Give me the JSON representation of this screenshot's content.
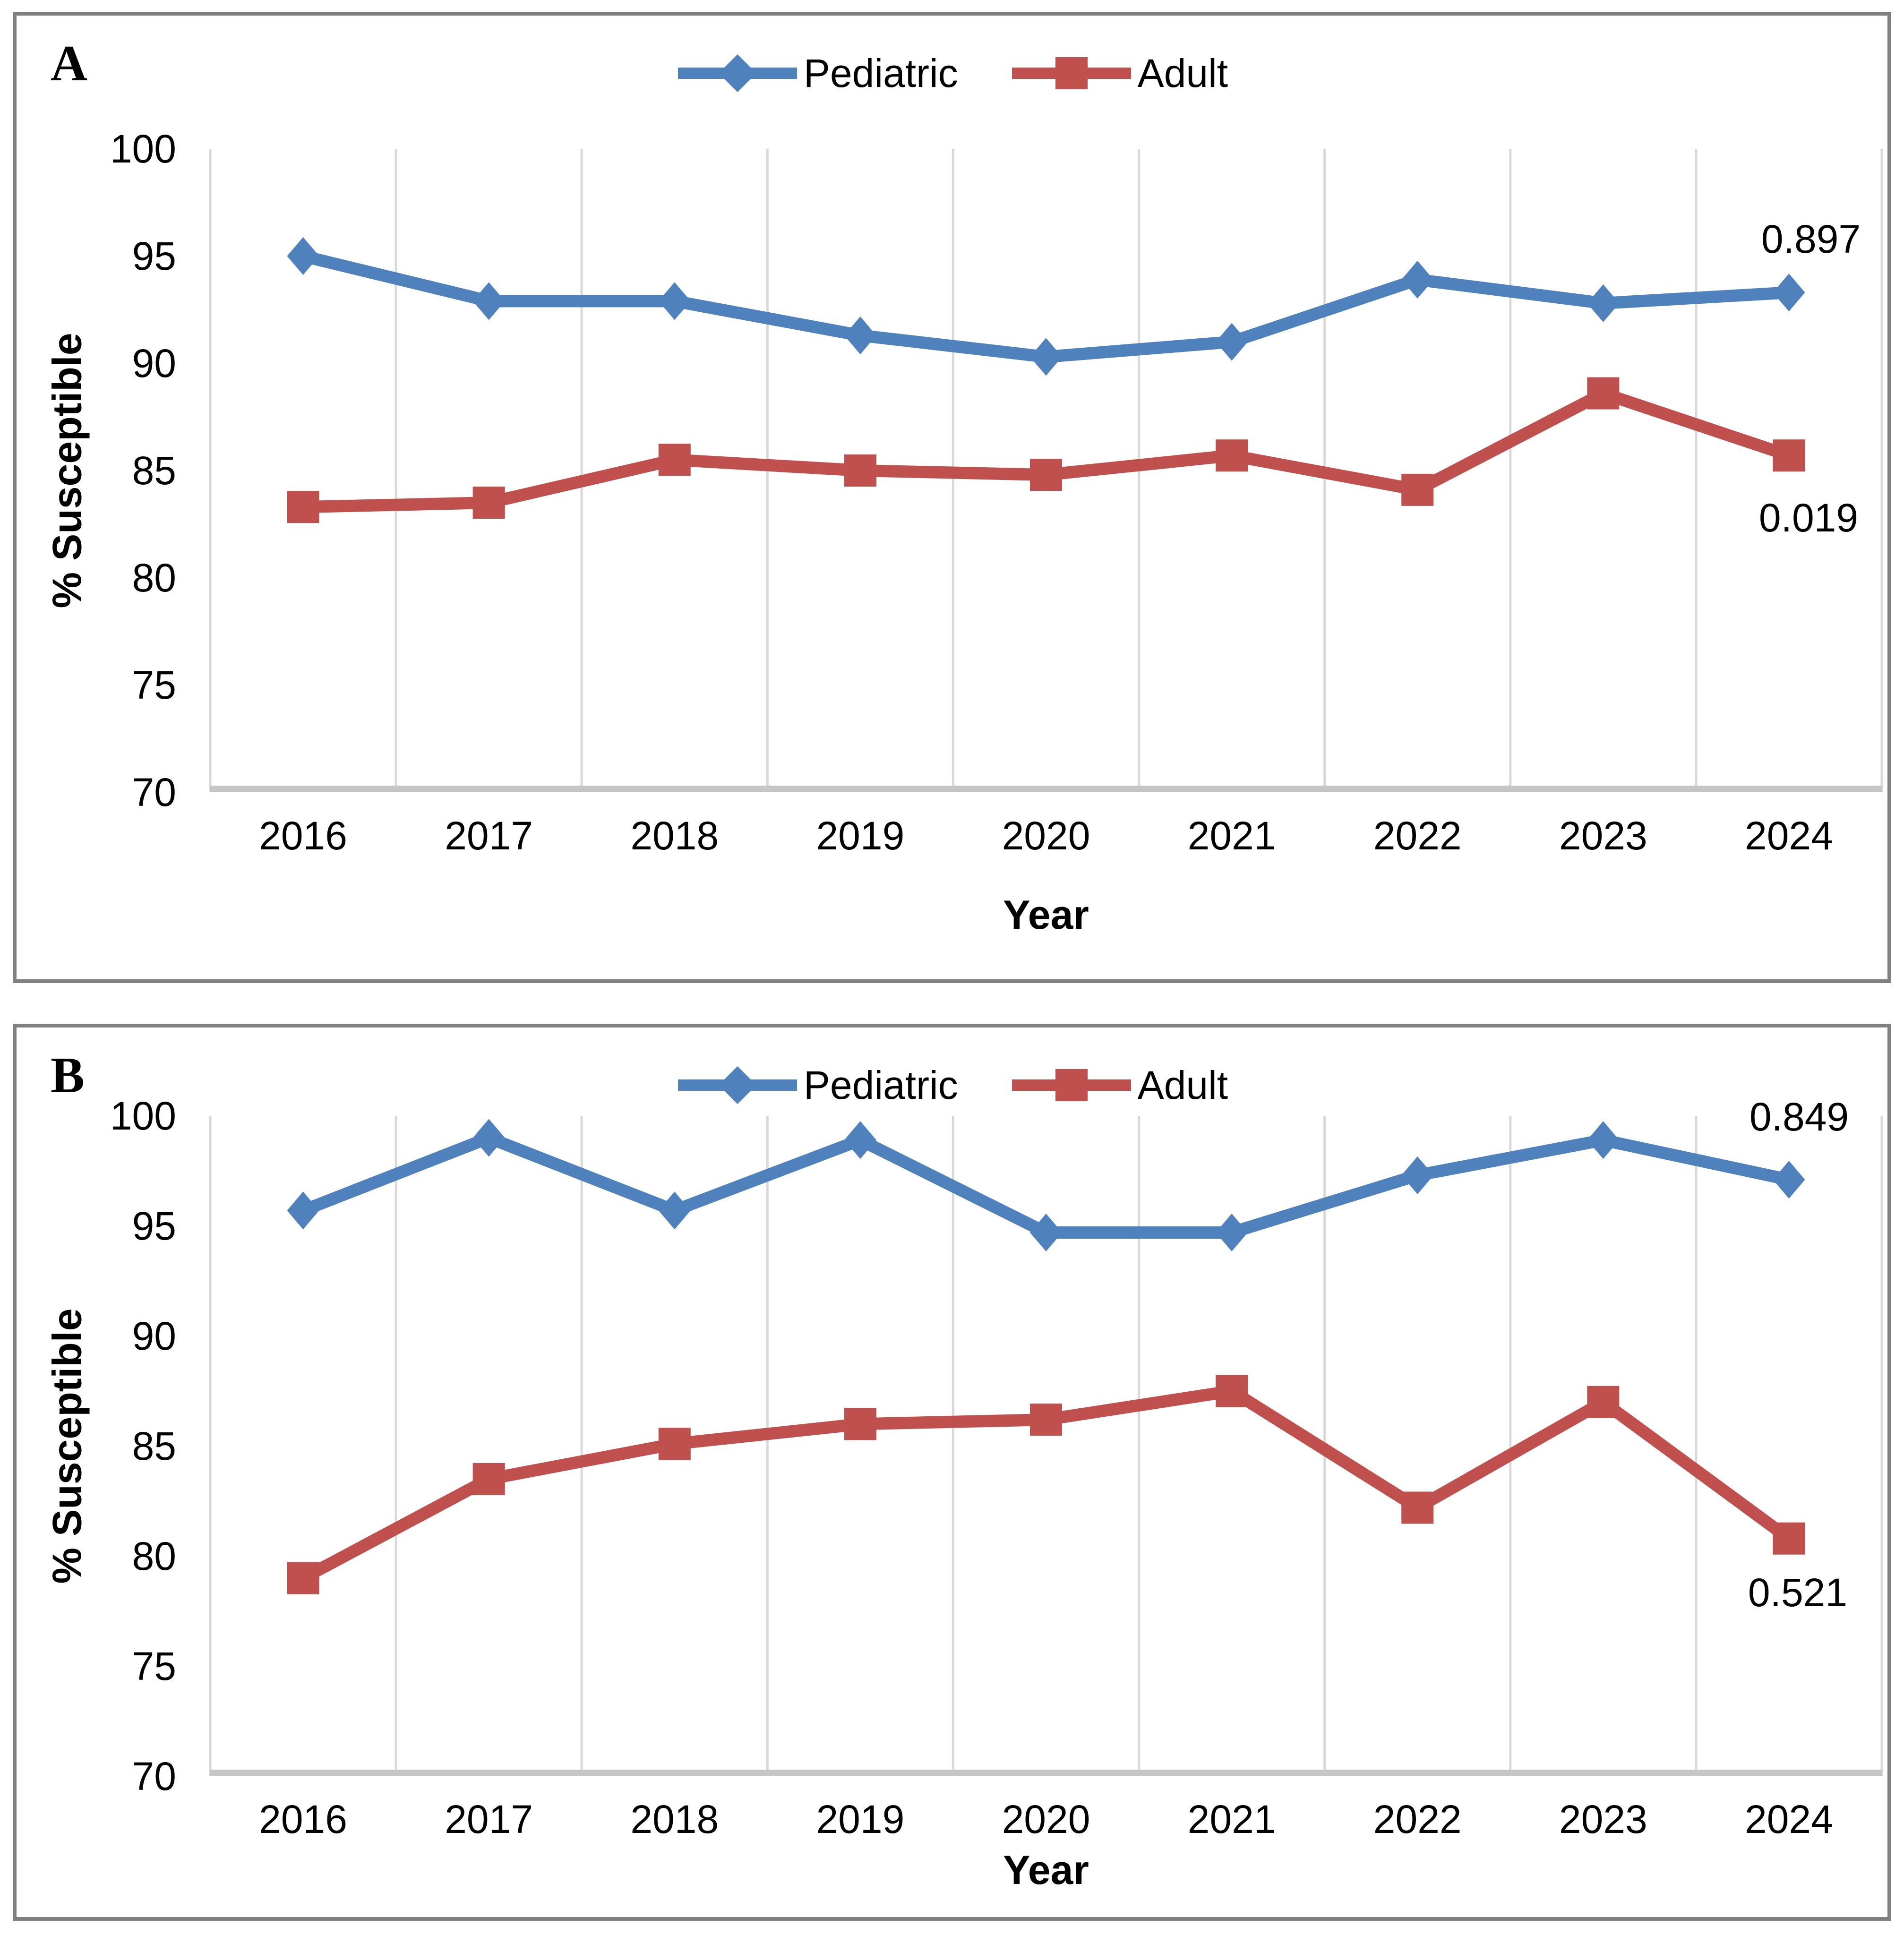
{
  "figure": {
    "background_color": "#ffffff",
    "panel_border_color": "#808080",
    "gridline_color": "#d9d9d9",
    "axis_line_color": "#c6c6c6",
    "text_color": "#000000"
  },
  "chart_data": [
    {
      "type": "line",
      "panel_label": "A",
      "xlabel": "Year",
      "ylabel": "% Susceptible",
      "ylim": [
        70,
        100
      ],
      "yticks": [
        100,
        95,
        90,
        85,
        80,
        75,
        70
      ],
      "grid": "vertical-only",
      "legend_position": "top-center",
      "categories": [
        "2016",
        "2017",
        "2018",
        "2019",
        "2020",
        "2021",
        "2022",
        "2023",
        "2024"
      ],
      "series": [
        {
          "name": "Pediatric",
          "color": "#4F81BD",
          "marker": "diamond",
          "values": [
            95.0,
            92.9,
            92.9,
            91.3,
            90.3,
            91.0,
            93.9,
            92.8,
            93.3
          ]
        },
        {
          "name": "Adult",
          "color": "#C0504D",
          "marker": "square",
          "values": [
            83.3,
            83.5,
            85.5,
            85.0,
            84.8,
            85.7,
            84.1,
            88.6,
            85.7
          ]
        }
      ],
      "annotations": [
        {
          "text": "0.897",
          "refers_to": "Pediatric"
        },
        {
          "text": "0.019",
          "refers_to": "Adult"
        }
      ]
    },
    {
      "type": "line",
      "panel_label": "B",
      "xlabel": "Year",
      "ylabel": "% Susceptible",
      "ylim": [
        70,
        100
      ],
      "yticks": [
        100,
        95,
        90,
        85,
        80,
        75,
        70
      ],
      "grid": "vertical-only",
      "legend_position": "top-center",
      "categories": [
        "2016",
        "2017",
        "2018",
        "2019",
        "2020",
        "2021",
        "2022",
        "2023",
        "2024"
      ],
      "series": [
        {
          "name": "Pediatric",
          "color": "#4F81BD",
          "marker": "diamond",
          "values": [
            95.7,
            99.0,
            95.7,
            98.9,
            94.7,
            94.7,
            97.3,
            98.9,
            97.1
          ]
        },
        {
          "name": "Adult",
          "color": "#C0504D",
          "marker": "square",
          "values": [
            79.0,
            83.5,
            85.1,
            86.0,
            86.2,
            87.5,
            82.2,
            87.0,
            80.8
          ]
        }
      ],
      "annotations": [
        {
          "text": "0.849",
          "refers_to": "Pediatric"
        },
        {
          "text": "0.521",
          "refers_to": "Adult"
        }
      ]
    }
  ]
}
